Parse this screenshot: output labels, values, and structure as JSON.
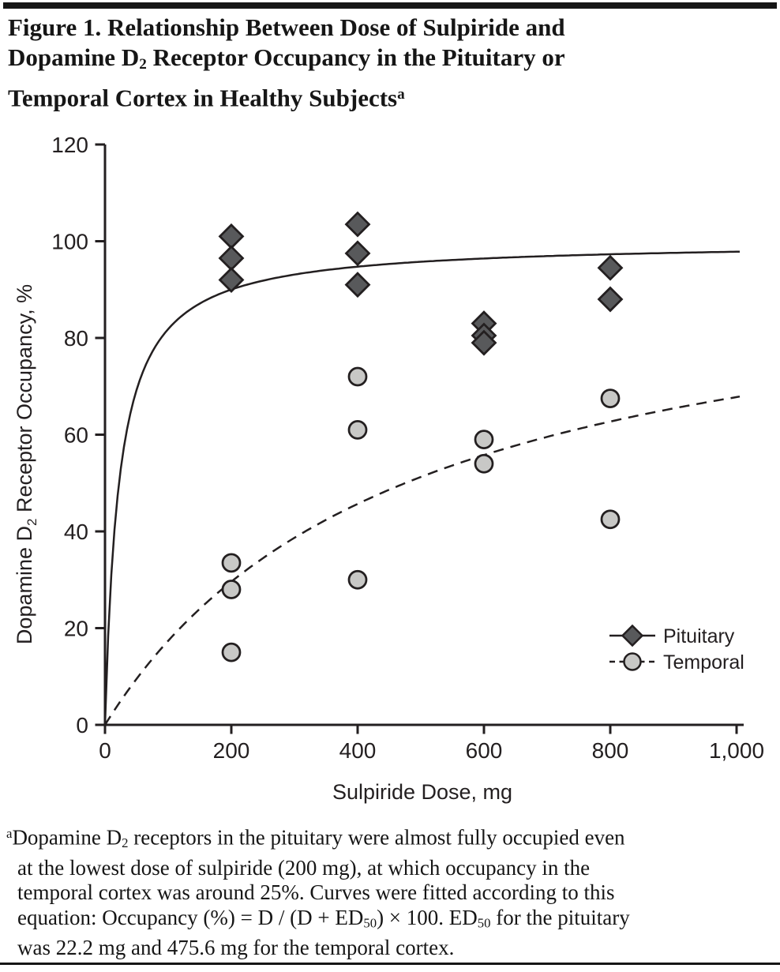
{
  "title": {
    "lines": [
      [
        {
          "t": "Figure 1. Relationship Between Dose of Sulpiride and",
          "s": "n"
        }
      ],
      [
        {
          "t": "Dopamine D",
          "s": "n"
        },
        {
          "t": "2",
          "s": "sub"
        },
        {
          "t": " Receptor Occupancy in the Pituitary or",
          "s": "n"
        }
      ],
      [
        {
          "t": "Temporal Cortex in Healthy Subjects",
          "s": "n"
        },
        {
          "t": "a",
          "s": "sup"
        }
      ]
    ]
  },
  "chart_data": {
    "type": "scatter",
    "xlabel": "Sulpiride Dose, mg",
    "ylabel": "Dopamine D2 Receptor Occupancy, %",
    "ylabel_parts": [
      "Dopamine D",
      "2",
      " Receptor Occupancy, %"
    ],
    "xlim": [
      0,
      1000
    ],
    "ylim": [
      0,
      120
    ],
    "x_ticks": [
      0,
      200,
      400,
      600,
      800,
      1000
    ],
    "x_tick_labels": [
      "0",
      "200",
      "400",
      "600",
      "800",
      "1,000"
    ],
    "y_ticks": [
      0,
      20,
      40,
      60,
      80,
      100,
      120
    ],
    "y_tick_labels": [
      "0",
      "20",
      "40",
      "60",
      "80",
      "100",
      "120"
    ],
    "grid": false,
    "legend_position": "lower right",
    "fit_equation": "Occupancy (%) = D / (D + ED50) x 100",
    "series": [
      {
        "name": "Pituitary",
        "marker": "diamond",
        "marker_color": "#58595b",
        "line_style": "solid",
        "ed50_mg": 22.2,
        "points": [
          [
            200,
            101
          ],
          [
            200,
            96.5
          ],
          [
            200,
            92
          ],
          [
            400,
            103.5
          ],
          [
            400,
            97.5
          ],
          [
            400,
            91
          ],
          [
            600,
            83
          ],
          [
            600,
            80.5
          ],
          [
            600,
            79
          ],
          [
            800,
            94.5
          ],
          [
            800,
            88
          ]
        ]
      },
      {
        "name": "Temporal",
        "marker": "circle",
        "marker_color": "#c8c8c6",
        "line_style": "dashed",
        "ed50_mg": 475.6,
        "points": [
          [
            200,
            33.5
          ],
          [
            200,
            28
          ],
          [
            200,
            15
          ],
          [
            400,
            72
          ],
          [
            400,
            61
          ],
          [
            400,
            30
          ],
          [
            600,
            59
          ],
          [
            600,
            54
          ],
          [
            800,
            67.5
          ],
          [
            800,
            42.5
          ]
        ]
      }
    ]
  },
  "footnote": {
    "lines": [
      [
        {
          "t": "a",
          "s": "sup"
        },
        {
          "t": "Dopamine D",
          "s": "n"
        },
        {
          "t": "2",
          "s": "sub"
        },
        {
          "t": " receptors in the pituitary were almost fully occupied even",
          "s": "n"
        }
      ],
      [
        {
          "t": "at the lowest dose of sulpiride (200 mg), at which occupancy in the",
          "s": "n"
        }
      ],
      [
        {
          "t": "temporal cortex was around 25%. Curves were fitted according to this",
          "s": "n"
        }
      ],
      [
        {
          "t": "equation: Occupancy (%) = D / (D + ED",
          "s": "n"
        },
        {
          "t": "50",
          "s": "sub"
        },
        {
          "t": ") × 100. ED",
          "s": "n"
        },
        {
          "t": "50",
          "s": "sub"
        },
        {
          "t": " for the pituitary",
          "s": "n"
        }
      ],
      [
        {
          "t": "was 22.2 mg and 475.6 mg for the temporal cortex.",
          "s": "n"
        }
      ]
    ]
  },
  "colors": {
    "ink": "#231f20",
    "bar": "#161616",
    "pituitary_fill": "#58595b",
    "temporal_fill": "#c8c8c6"
  }
}
